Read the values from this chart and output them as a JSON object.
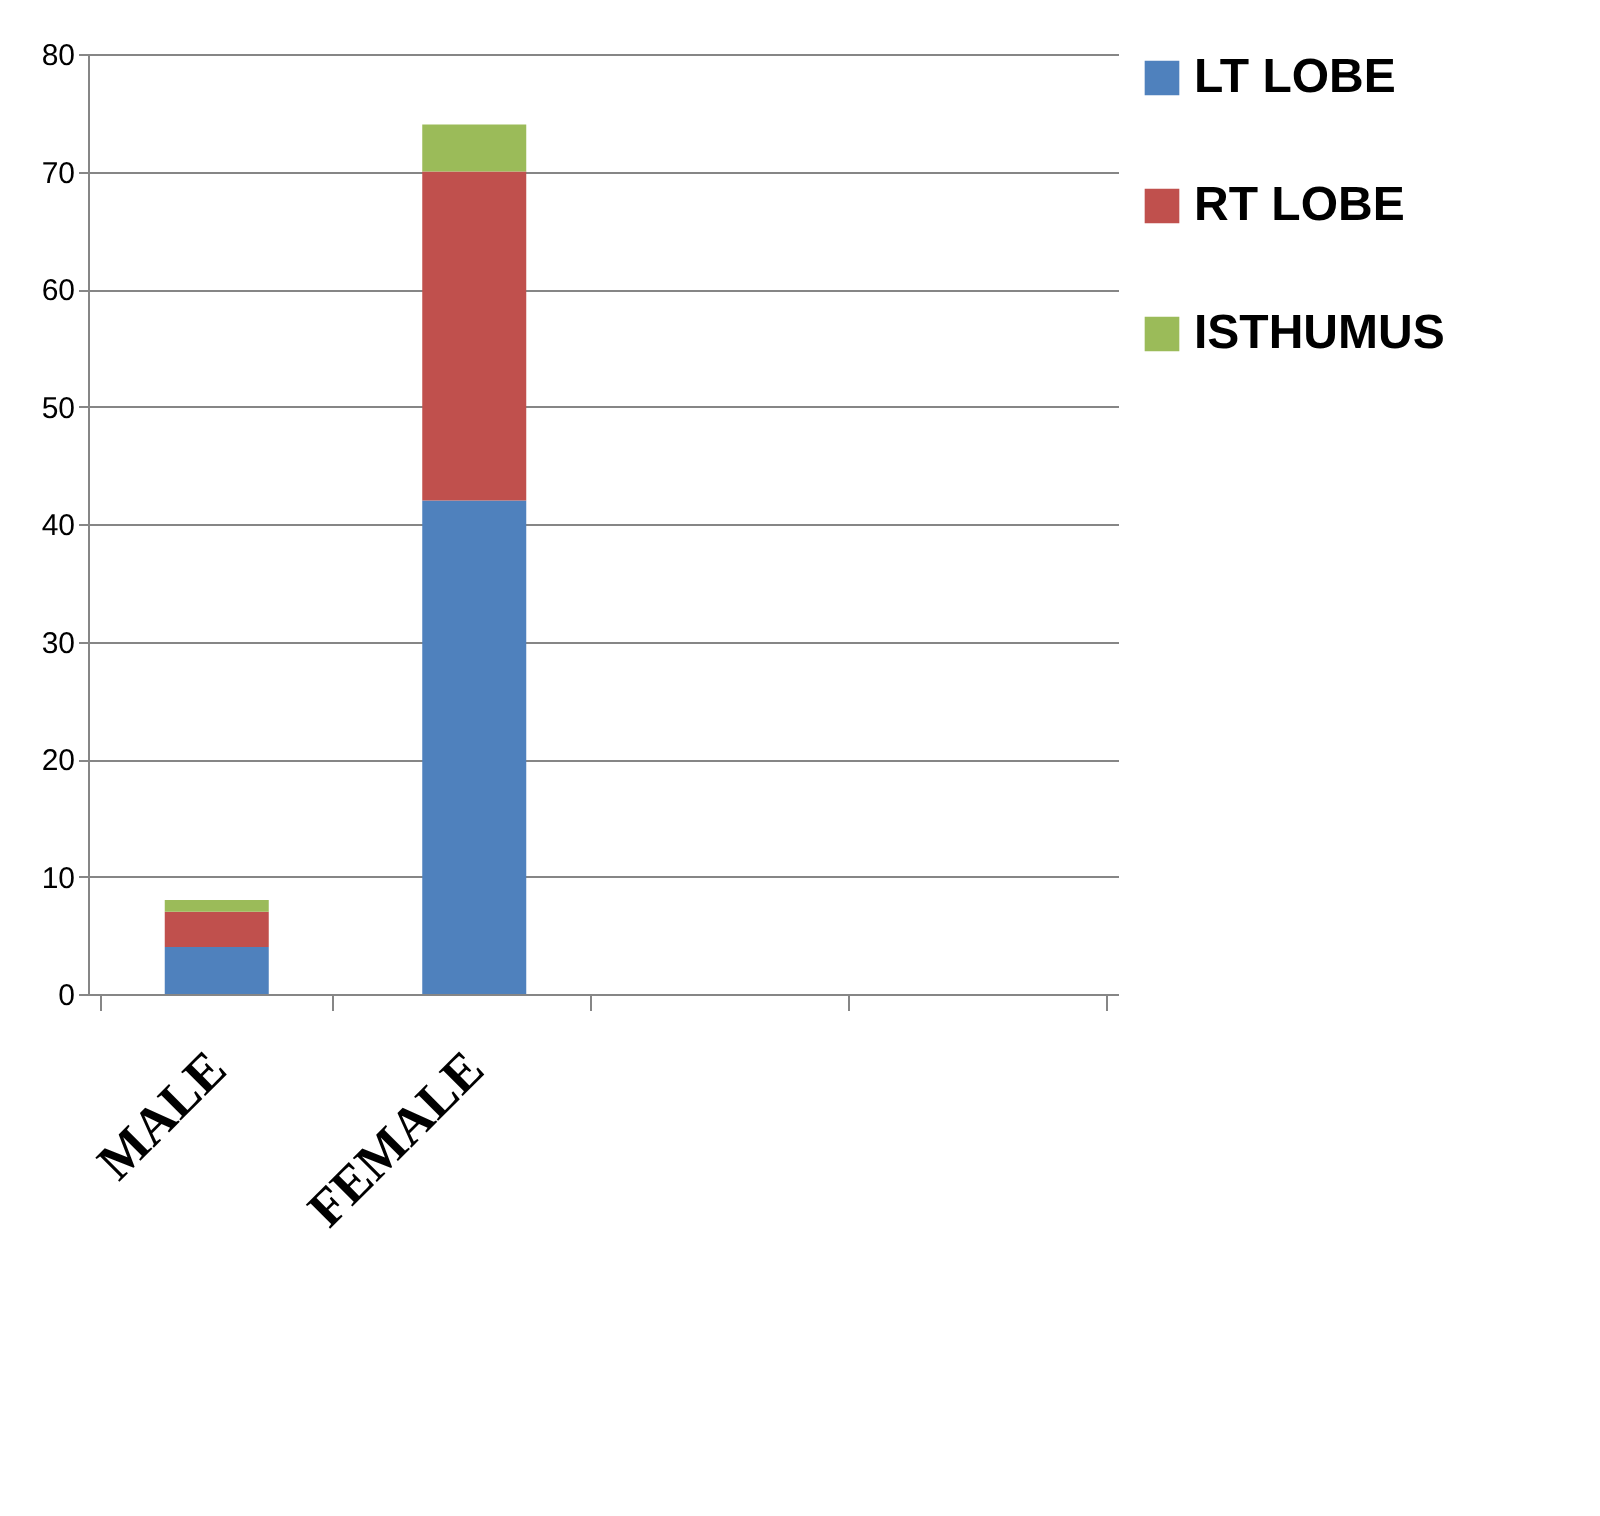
{
  "chart_data": {
    "type": "bar",
    "stacked": true,
    "categories": [
      "MALE",
      "FEMALE",
      null,
      null
    ],
    "series": [
      {
        "name": "LT LOBE",
        "color": "#4f81bd",
        "values": [
          4,
          42,
          null,
          null
        ]
      },
      {
        "name": "RT LOBE",
        "color": "#c0504d",
        "values": [
          3,
          28,
          null,
          null
        ]
      },
      {
        "name": "ISTHUMUS",
        "color": "#9bbb59",
        "values": [
          1,
          4,
          null,
          null
        ]
      }
    ],
    "ylim": [
      0,
      80
    ],
    "yticks": [
      0,
      10,
      20,
      30,
      40,
      50,
      60,
      70,
      80
    ],
    "grid": "y",
    "legend": "right"
  }
}
